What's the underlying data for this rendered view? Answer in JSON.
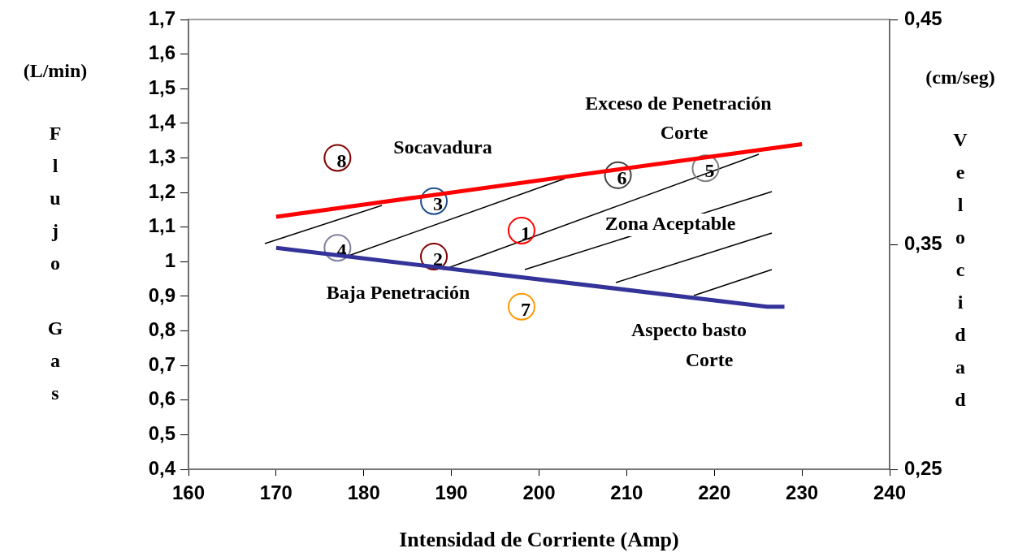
{
  "chart_data": {
    "type": "scatter",
    "xlabel": "Intensidad de Corriente (Amp)",
    "ylabel": "(L/min) Flujo Gas",
    "y2label": "(cm/seg) Velocidad",
    "xlim": [
      160,
      240
    ],
    "xticks": [
      160,
      170,
      180,
      190,
      200,
      210,
      220,
      230,
      240
    ],
    "ylim": [
      0.4,
      1.7
    ],
    "yticks": [
      {
        "value": 0.4,
        "label": "0,4"
      },
      {
        "value": 0.5,
        "label": "0,5"
      },
      {
        "value": 0.6,
        "label": "0,6"
      },
      {
        "value": 0.7,
        "label": "0,7"
      },
      {
        "value": 0.8,
        "label": "0,8"
      },
      {
        "value": 0.9,
        "label": "0,9"
      },
      1,
      {
        "value": 1.1,
        "label": "1,1"
      },
      {
        "value": 1.2,
        "label": "1,2"
      },
      {
        "value": 1.3,
        "label": "1,3"
      },
      {
        "value": 1.4,
        "label": "1,4"
      },
      {
        "value": 1.5,
        "label": "1,5"
      },
      {
        "value": 1.6,
        "label": "1,6"
      },
      {
        "value": 1.7,
        "label": "1,7"
      }
    ],
    "y2lim": [
      0.25,
      0.45
    ],
    "y2ticks": [
      {
        "value": 0.25,
        "label": "0,25"
      },
      {
        "value": 0.35,
        "label": "0,35"
      },
      {
        "value": 0.45,
        "label": "0,45"
      }
    ],
    "legend": false,
    "series": [
      {
        "type": "line",
        "color": "#ff0000",
        "marker": "none",
        "x": [
          170,
          230
        ],
        "values": [
          1.13,
          1.34
        ]
      },
      {
        "type": "line",
        "color": "#333399",
        "marker": "none",
        "x": [
          170,
          226,
          228
        ],
        "values": [
          1.04,
          0.87,
          0.87
        ]
      },
      {
        "type": "scatter",
        "marker": "circle",
        "x": [
          177,
          177,
          188,
          188,
          198,
          198,
          209,
          219
        ],
        "values": [
          1.04,
          1.3,
          1.015,
          1.175,
          1.09,
          0.87,
          1.25,
          1.27
        ],
        "colors": [
          "#8080a0",
          "#800000",
          "#800000",
          "#1a4f8a",
          "#ff0000",
          "#ff9900",
          "#404040",
          "#808080"
        ]
      }
    ],
    "annotations": [
      {
        "text": "4",
        "x": 177,
        "y": 1.04
      },
      {
        "text": "8",
        "x": 177,
        "y": 1.3
      },
      {
        "text": "2",
        "x": 188,
        "y": 1.015
      },
      {
        "text": "3",
        "x": 188,
        "y": 1.175
      },
      {
        "text": "1",
        "x": 198,
        "y": 1.09
      },
      {
        "text": "7",
        "x": 198,
        "y": 0.87
      },
      {
        "text": "6",
        "x": 209,
        "y": 1.25
      },
      {
        "text": "5",
        "x": 219,
        "y": 1.27
      },
      "Socavadura",
      "Exceso de Penetración",
      "Corte",
      "Zona Aceptable",
      "Baja Penetración",
      "Aspecto basto",
      "Corte"
    ]
  }
}
